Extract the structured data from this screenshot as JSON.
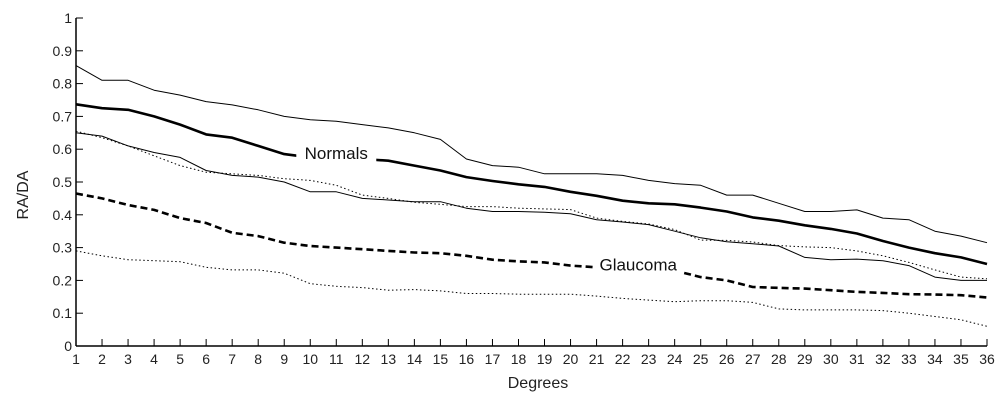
{
  "chart_data": {
    "type": "line",
    "xlabel": "Degrees",
    "ylabel": "RA/DA",
    "xlim": [
      1,
      36
    ],
    "ylim": [
      0,
      1
    ],
    "x_ticks": [
      1,
      2,
      3,
      4,
      5,
      6,
      7,
      8,
      9,
      10,
      11,
      12,
      13,
      14,
      15,
      16,
      17,
      18,
      19,
      20,
      21,
      22,
      23,
      24,
      25,
      26,
      27,
      28,
      29,
      30,
      31,
      32,
      33,
      34,
      35,
      36
    ],
    "y_ticks": [
      0,
      0.1,
      0.2,
      0.3,
      0.4,
      0.5,
      0.6,
      0.7,
      0.8,
      0.9,
      1
    ],
    "grid": false,
    "annotations": [
      {
        "text": "Normals",
        "x": 11,
        "y": 0.58
      },
      {
        "text": "Glaucoma",
        "x": 22.6,
        "y": 0.24
      }
    ],
    "x": [
      1,
      2,
      3,
      4,
      5,
      6,
      7,
      8,
      9,
      10,
      11,
      12,
      13,
      14,
      15,
      16,
      17,
      18,
      19,
      20,
      21,
      22,
      23,
      24,
      25,
      26,
      27,
      28,
      29,
      30,
      31,
      32,
      33,
      34,
      35,
      36
    ],
    "series": [
      {
        "style": "thin-solid",
        "values": [
          0.855,
          0.81,
          0.81,
          0.78,
          0.765,
          0.745,
          0.735,
          0.72,
          0.7,
          0.69,
          0.685,
          0.675,
          0.665,
          0.65,
          0.63,
          0.57,
          0.55,
          0.545,
          0.525,
          0.525,
          0.525,
          0.52,
          0.505,
          0.495,
          0.49,
          0.46,
          0.46,
          0.435,
          0.41,
          0.41,
          0.415,
          0.39,
          0.385,
          0.35,
          0.335,
          0.315
        ]
      },
      {
        "style": "thick-solid",
        "values": [
          0.737,
          0.725,
          0.72,
          0.7,
          0.675,
          0.645,
          0.635,
          0.61,
          0.585,
          0.575,
          0.57,
          0.57,
          0.565,
          0.55,
          0.535,
          0.515,
          0.503,
          0.493,
          0.485,
          0.47,
          0.458,
          0.443,
          0.435,
          0.432,
          0.422,
          0.41,
          0.392,
          0.382,
          0.368,
          0.357,
          0.343,
          0.32,
          0.3,
          0.283,
          0.27,
          0.25
        ]
      },
      {
        "style": "thin-solid",
        "values": [
          0.65,
          0.64,
          0.61,
          0.59,
          0.575,
          0.535,
          0.52,
          0.515,
          0.5,
          0.47,
          0.47,
          0.45,
          0.445,
          0.44,
          0.44,
          0.42,
          0.41,
          0.41,
          0.408,
          0.403,
          0.385,
          0.378,
          0.37,
          0.35,
          0.33,
          0.318,
          0.312,
          0.305,
          0.27,
          0.263,
          0.265,
          0.26,
          0.245,
          0.21,
          0.2,
          0.2
        ]
      },
      {
        "style": "thin-dotted",
        "values": [
          0.655,
          0.635,
          0.61,
          0.58,
          0.55,
          0.53,
          0.525,
          0.52,
          0.51,
          0.505,
          0.49,
          0.46,
          0.45,
          0.438,
          0.432,
          0.425,
          0.425,
          0.42,
          0.418,
          0.416,
          0.39,
          0.38,
          0.372,
          0.355,
          0.323,
          0.322,
          0.317,
          0.306,
          0.302,
          0.3,
          0.29,
          0.275,
          0.255,
          0.232,
          0.21,
          0.205
        ]
      },
      {
        "style": "thick-dashed",
        "values": [
          0.465,
          0.45,
          0.43,
          0.415,
          0.39,
          0.375,
          0.345,
          0.335,
          0.315,
          0.305,
          0.3,
          0.295,
          0.29,
          0.285,
          0.283,
          0.275,
          0.263,
          0.258,
          0.255,
          0.245,
          0.24,
          0.24,
          0.235,
          0.23,
          0.21,
          0.2,
          0.18,
          0.177,
          0.175,
          0.17,
          0.165,
          0.162,
          0.158,
          0.157,
          0.155,
          0.148
        ]
      },
      {
        "style": "thin-dotted",
        "values": [
          0.29,
          0.275,
          0.263,
          0.26,
          0.257,
          0.24,
          0.232,
          0.232,
          0.222,
          0.19,
          0.182,
          0.178,
          0.17,
          0.172,
          0.168,
          0.16,
          0.16,
          0.158,
          0.158,
          0.158,
          0.152,
          0.145,
          0.14,
          0.135,
          0.138,
          0.138,
          0.133,
          0.113,
          0.11,
          0.11,
          0.11,
          0.108,
          0.1,
          0.09,
          0.08,
          0.06
        ]
      }
    ]
  }
}
